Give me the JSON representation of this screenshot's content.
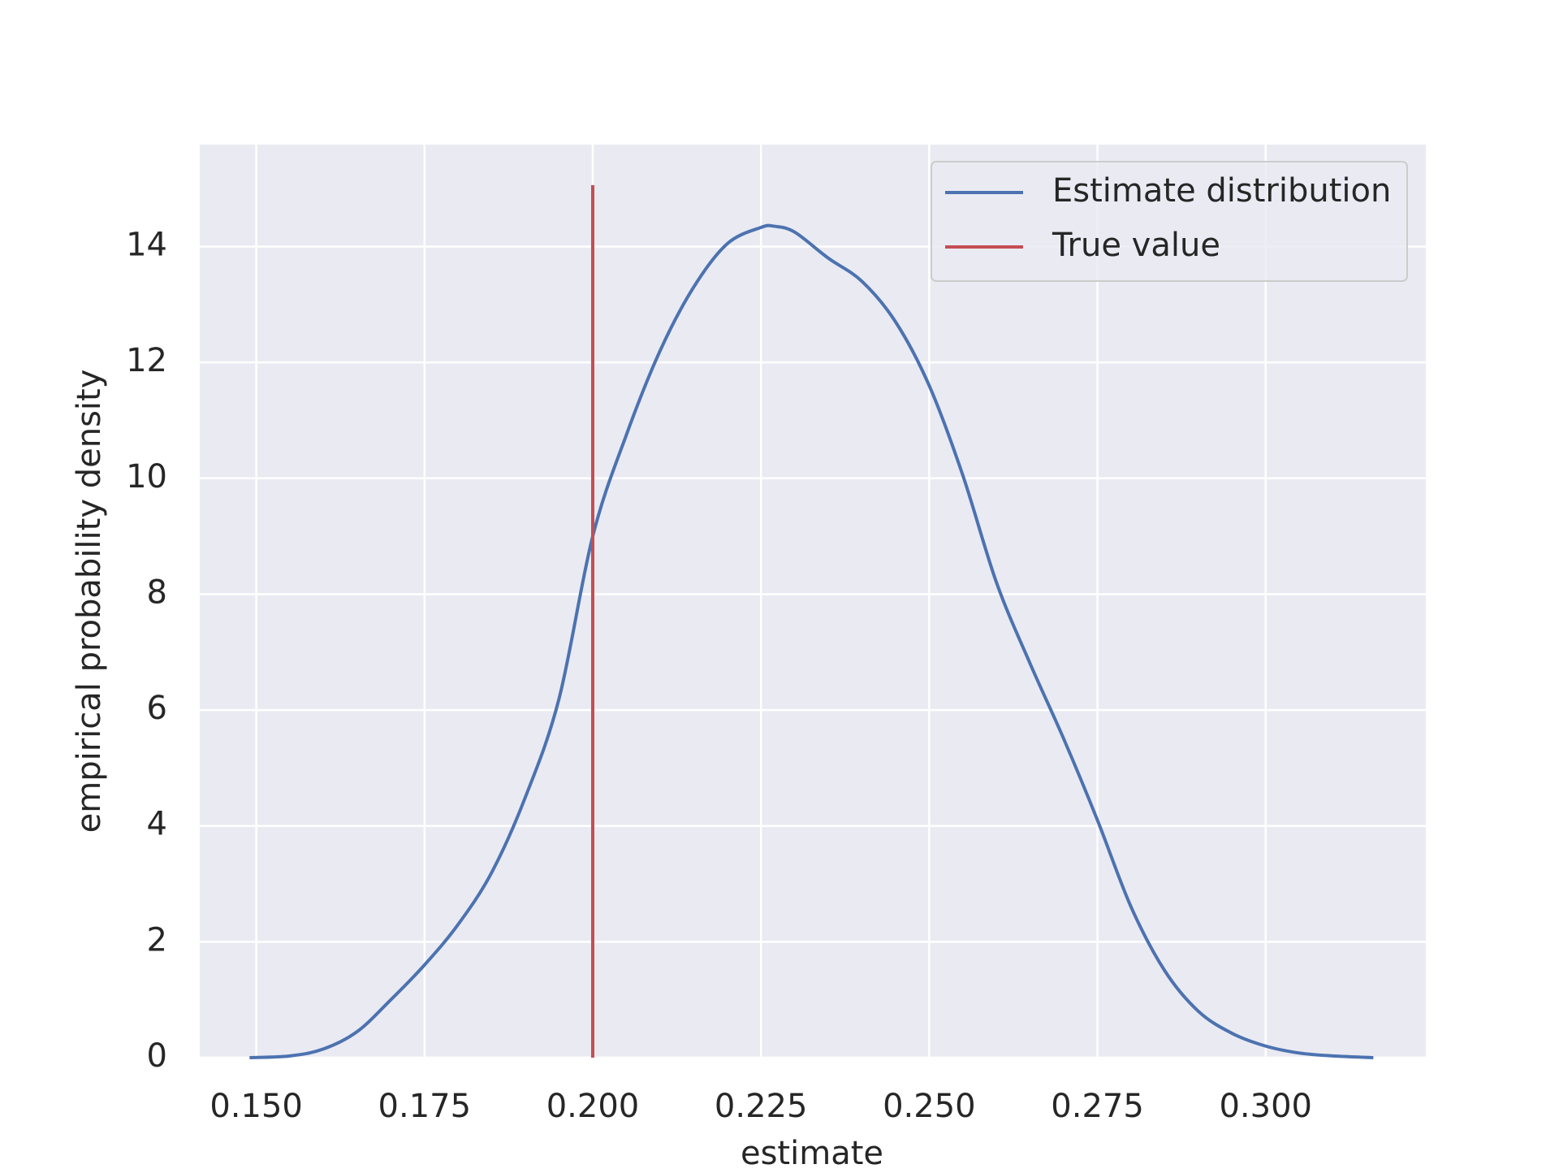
{
  "chart_data": {
    "type": "line",
    "xlabel": "estimate",
    "ylabel": "empirical probability density",
    "xlim": [
      0.1416,
      0.3238
    ],
    "ylim": [
      0,
      15.76
    ],
    "xticks": [
      {
        "value": 0.15,
        "label": "0.150"
      },
      {
        "value": 0.175,
        "label": "0.175"
      },
      {
        "value": 0.2,
        "label": "0.200"
      },
      {
        "value": 0.225,
        "label": "0.225"
      },
      {
        "value": 0.25,
        "label": "0.250"
      },
      {
        "value": 0.275,
        "label": "0.275"
      },
      {
        "value": 0.3,
        "label": "0.300"
      }
    ],
    "yticks": [
      0,
      2,
      4,
      6,
      8,
      10,
      12,
      14
    ],
    "grid": true,
    "legend": "upper right",
    "series": [
      {
        "name": "Estimate distribution",
        "color": "#4c72b0",
        "x": [
          0.149,
          0.155,
          0.16,
          0.165,
          0.17,
          0.175,
          0.18,
          0.185,
          0.19,
          0.195,
          0.2,
          0.205,
          0.21,
          0.215,
          0.22,
          0.225,
          0.227,
          0.23,
          0.235,
          0.24,
          0.245,
          0.25,
          0.255,
          0.26,
          0.265,
          0.27,
          0.275,
          0.28,
          0.285,
          0.29,
          0.295,
          0.3,
          0.305,
          0.31,
          0.316
        ],
        "values": [
          0,
          0.03,
          0.15,
          0.45,
          1.0,
          1.6,
          2.3,
          3.2,
          4.5,
          6.2,
          9.0,
          10.75,
          12.2,
          13.3,
          14.05,
          14.33,
          14.35,
          14.25,
          13.8,
          13.4,
          12.7,
          11.6,
          10.05,
          8.2,
          6.8,
          5.5,
          4.1,
          2.6,
          1.5,
          0.8,
          0.42,
          0.2,
          0.08,
          0.03,
          0
        ]
      },
      {
        "name": "True value",
        "color": "#c44e52",
        "x": [
          0.2,
          0.2
        ],
        "values": [
          0,
          15.06
        ]
      }
    ]
  }
}
